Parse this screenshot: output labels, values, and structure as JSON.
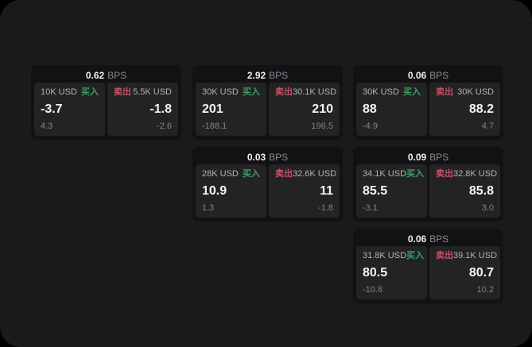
{
  "labels": {
    "bps": "BPS",
    "buy": "买入",
    "sell": "卖出"
  },
  "colors": {
    "buy_green": "#3d9f63",
    "sell_red": "#c55266",
    "page_bg": "#1a1a1c",
    "card_bg": "#121214",
    "panel_bg": "#232326"
  },
  "cards": [
    {
      "bps": "0.62",
      "buy": {
        "amount": "10K USD",
        "value": "-3.7",
        "sub": "4.3"
      },
      "sell": {
        "amount": "5.5K USD",
        "value": "-1.8",
        "sub": "-2.6"
      }
    },
    {
      "bps": "2.92",
      "buy": {
        "amount": "30K USD",
        "value": "201",
        "sub": "-188.1"
      },
      "sell": {
        "amount": "30.1K USD",
        "value": "210",
        "sub": "196.5"
      }
    },
    {
      "bps": "0.06",
      "buy": {
        "amount": "30K USD",
        "value": "88",
        "sub": "-4.9"
      },
      "sell": {
        "amount": "30K USD",
        "value": "88.2",
        "sub": "4.7"
      }
    },
    {
      "bps": "0.03",
      "buy": {
        "amount": "28K USD",
        "value": "10.9",
        "sub": "1.3"
      },
      "sell": {
        "amount": "32.6K USD",
        "value": "11",
        "sub": "-1.8"
      }
    },
    {
      "bps": "0.09",
      "buy": {
        "amount": "34.1K USD",
        "value": "85.5",
        "sub": "-3.1"
      },
      "sell": {
        "amount": "32.8K USD",
        "value": "85.8",
        "sub": "3.0"
      }
    },
    {
      "bps": "0.06",
      "buy": {
        "amount": "31.8K USD",
        "value": "80.5",
        "sub": "-10.8"
      },
      "sell": {
        "amount": "39.1K USD",
        "value": "80.7",
        "sub": "10.2"
      }
    }
  ]
}
